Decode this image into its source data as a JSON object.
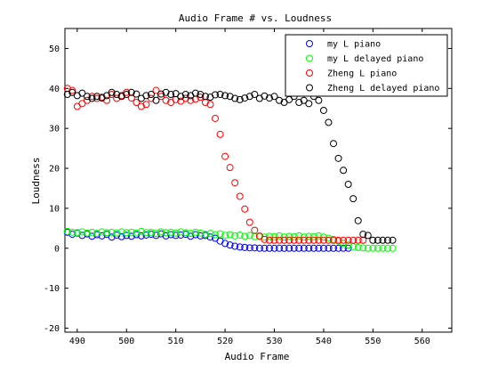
{
  "chart_data": {
    "type": "scatter",
    "title": "Audio Frame # vs. Loudness",
    "xlabel": "Audio Frame",
    "ylabel": "Loudness",
    "xlim": [
      487.5,
      566
    ],
    "ylim": [
      -21,
      55
    ],
    "xticks": [
      490,
      500,
      510,
      520,
      530,
      540,
      550,
      560
    ],
    "yticks": [
      -20,
      -10,
      0,
      10,
      20,
      30,
      40,
      50
    ],
    "grid": false,
    "legend_position": "top-right",
    "marker": "open-circle",
    "series": [
      {
        "name": "my L piano",
        "color": "#0000ff",
        "x": [
          488,
          489,
          490,
          491,
          492,
          493,
          494,
          495,
          496,
          497,
          498,
          499,
          500,
          501,
          502,
          503,
          504,
          505,
          506,
          507,
          508,
          509,
          510,
          511,
          512,
          513,
          514,
          515,
          516,
          517,
          518,
          519,
          520,
          521,
          522,
          523,
          524,
          525,
          526,
          527,
          528,
          529,
          530,
          531,
          532,
          533,
          534,
          535,
          536,
          537,
          538,
          539,
          540,
          541,
          542,
          543,
          544,
          545
        ],
        "y": [
          4,
          3.5,
          3.8,
          3.2,
          3.6,
          3,
          3.4,
          3.1,
          3.5,
          2.8,
          3.3,
          2.9,
          3.2,
          3,
          3.4,
          3.1,
          3.3,
          3.5,
          3.2,
          3.6,
          3.1,
          3.4,
          3.2,
          3.3,
          3.5,
          3,
          3.4,
          3.1,
          3.2,
          2.8,
          2.5,
          1.8,
          1.2,
          0.8,
          0.5,
          0.3,
          0.2,
          0.1,
          0.1,
          0,
          0,
          0,
          0,
          0,
          0,
          0,
          0,
          0,
          0,
          0,
          0,
          0,
          0,
          0,
          0,
          0,
          0,
          0
        ]
      },
      {
        "name": "my L delayed piano",
        "color": "#00ff00",
        "x": [
          488,
          489,
          490,
          491,
          492,
          493,
          494,
          495,
          496,
          497,
          498,
          499,
          500,
          501,
          502,
          503,
          504,
          505,
          506,
          507,
          508,
          509,
          510,
          511,
          512,
          513,
          514,
          515,
          516,
          517,
          518,
          519,
          520,
          521,
          522,
          523,
          524,
          525,
          526,
          527,
          528,
          529,
          530,
          531,
          532,
          533,
          534,
          535,
          536,
          537,
          538,
          539,
          540,
          541,
          542,
          543,
          544,
          545,
          546,
          547,
          548,
          549,
          550,
          551,
          552,
          553,
          554
        ],
        "y": [
          4.2,
          4,
          3.9,
          4.1,
          3.8,
          4,
          3.7,
          4.1,
          3.9,
          4,
          3.8,
          4.1,
          3.9,
          4,
          3.8,
          4.2,
          3.9,
          4,
          3.7,
          4.1,
          3.9,
          4,
          3.8,
          4.1,
          3.9,
          3.7,
          4,
          3.8,
          3.5,
          3.7,
          3.4,
          3.6,
          3.2,
          3.4,
          3.1,
          3.3,
          3,
          3.2,
          2.9,
          3.1,
          2.8,
          3,
          2.9,
          3.1,
          2.8,
          3,
          2.9,
          3.1,
          2.8,
          3,
          2.9,
          3.1,
          2.8,
          2.5,
          2.2,
          1.8,
          1.2,
          0.8,
          0.4,
          0.2,
          0.1,
          0,
          0,
          0,
          0,
          0,
          0
        ]
      },
      {
        "name": "Zheng L piano",
        "color": "#ff0000",
        "x": [
          488,
          489,
          490,
          491,
          492,
          493,
          494,
          495,
          496,
          497,
          498,
          499,
          500,
          501,
          502,
          503,
          504,
          505,
          506,
          507,
          508,
          509,
          510,
          511,
          512,
          513,
          514,
          515,
          516,
          517,
          518,
          519,
          520,
          521,
          522,
          523,
          524,
          525,
          526,
          527,
          528,
          529,
          530,
          531,
          532,
          533,
          534,
          535,
          536,
          537,
          538,
          539,
          540,
          541,
          542,
          543,
          544,
          545,
          546,
          547,
          548
        ],
        "y": [
          40,
          39.5,
          35.5,
          36.2,
          37,
          38,
          37.5,
          37.8,
          37,
          38.5,
          37.5,
          38.2,
          39,
          37.6,
          36.5,
          35.5,
          36,
          37.5,
          39.5,
          38,
          37,
          36.5,
          37.2,
          36.8,
          37.5,
          37,
          37.3,
          37.8,
          36.5,
          36,
          32.5,
          28.5,
          23,
          20.2,
          16.4,
          13,
          9.8,
          6.5,
          4.5,
          3,
          2.2,
          2,
          2,
          2,
          2,
          2,
          2,
          2,
          2,
          2,
          2,
          2,
          2,
          2,
          2,
          2,
          2,
          2,
          2,
          2,
          2
        ]
      },
      {
        "name": "Zheng L delayed piano",
        "color": "#000000",
        "x": [
          488,
          489,
          490,
          491,
          492,
          493,
          494,
          495,
          496,
          497,
          498,
          499,
          500,
          501,
          502,
          503,
          504,
          505,
          506,
          507,
          508,
          509,
          510,
          511,
          512,
          513,
          514,
          515,
          516,
          517,
          518,
          519,
          520,
          521,
          522,
          523,
          524,
          525,
          526,
          527,
          528,
          529,
          530,
          531,
          532,
          533,
          534,
          535,
          536,
          537,
          538,
          539,
          540,
          541,
          542,
          543,
          544,
          545,
          546,
          547,
          548,
          549,
          550,
          551,
          552,
          553,
          554
        ],
        "y": [
          38.5,
          39,
          38.2,
          38.8,
          38,
          37.5,
          38,
          37.6,
          38.2,
          39,
          38.5,
          38,
          38.5,
          39,
          38.6,
          37.5,
          38.2,
          38.5,
          37,
          38.6,
          39,
          38.5,
          38.7,
          38,
          38.5,
          38.2,
          38.8,
          38.5,
          38,
          37.8,
          38.4,
          38.5,
          38.2,
          38,
          37.5,
          37.2,
          37.6,
          38,
          38.5,
          37.5,
          38.1,
          37.6,
          38,
          37,
          36.5,
          37.2,
          38,
          36.5,
          37,
          36.2,
          38,
          37,
          34.5,
          31.5,
          26.2,
          22.5,
          19.5,
          16,
          12.4,
          6.9,
          3.5,
          3.2,
          2,
          2,
          2,
          2,
          2
        ]
      }
    ]
  }
}
